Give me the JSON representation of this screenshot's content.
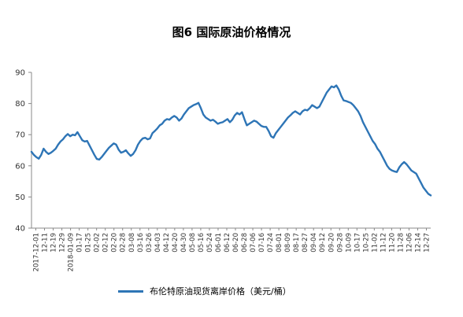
{
  "chart_data": {
    "type": "line",
    "title": "图6 国际原油价格情况",
    "xlabel": "",
    "ylabel": "",
    "ylim": [
      40,
      90
    ],
    "yticks": [
      40,
      50,
      60,
      70,
      80,
      90
    ],
    "grid": false,
    "legend_position": "bottom",
    "series_color": "#2E75B6",
    "x_tick_labels": [
      "2017-12-01",
      "12-11",
      "12-19",
      "12-29",
      "2018-01-09",
      "01-17",
      "01-25",
      "02-02",
      "02-12",
      "02-20",
      "02-28",
      "03-08",
      "03-16",
      "03-26",
      "04-03",
      "04-12",
      "04-20",
      "04-30",
      "05-08",
      "05-16",
      "05-24",
      "06-01",
      "06-12",
      "06-20",
      "06-28",
      "07-06",
      "07-16",
      "07-24",
      "08-01",
      "08-09",
      "08-17",
      "08-27",
      "09-04",
      "09-12",
      "09-20",
      "09-28",
      "10-09",
      "10-17",
      "10-25",
      "11-02",
      "11-12",
      "11-20",
      "11-28",
      "12-06",
      "12-14",
      "12-27"
    ],
    "series": [
      {
        "name": "布伦特原油现货离岸价格（美元/桶）",
        "values": [
          64.5,
          63.5,
          62.8,
          62.3,
          63.5,
          65.5,
          64.5,
          63.8,
          64.2,
          64.8,
          65.5,
          66.8,
          67.8,
          68.5,
          69.5,
          70.2,
          69.5,
          70.0,
          69.8,
          70.8,
          69.5,
          68.2,
          67.8,
          68.0,
          66.5,
          65.0,
          63.5,
          62.2,
          62.0,
          62.8,
          63.8,
          64.8,
          65.8,
          66.5,
          67.2,
          66.8,
          65.2,
          64.2,
          64.5,
          65.0,
          64.0,
          63.2,
          63.8,
          65.0,
          66.8,
          68.0,
          68.8,
          69.0,
          68.5,
          68.8,
          70.5,
          71.2,
          72.0,
          73.0,
          73.5,
          74.5,
          75.0,
          74.8,
          75.5,
          76.0,
          75.5,
          74.5,
          75.2,
          76.5,
          77.5,
          78.5,
          79.0,
          79.5,
          79.8,
          80.2,
          78.5,
          76.5,
          75.5,
          75.0,
          74.5,
          74.8,
          74.2,
          73.5,
          73.8,
          74.0,
          74.5,
          75.0,
          74.0,
          74.8,
          76.2,
          77.0,
          76.5,
          77.2,
          75.0,
          73.0,
          73.5,
          74.0,
          74.5,
          74.2,
          73.5,
          72.8,
          72.5,
          72.5,
          71.2,
          69.5,
          69.0,
          70.5,
          71.5,
          72.5,
          73.5,
          74.5,
          75.5,
          76.2,
          77.0,
          77.5,
          77.0,
          76.5,
          77.5,
          78.0,
          77.8,
          78.5,
          79.5,
          79.0,
          78.5,
          79.0,
          80.5,
          82.0,
          83.5,
          84.5,
          85.5,
          85.2,
          85.8,
          84.5,
          82.5,
          81.0,
          80.8,
          80.5,
          80.2,
          79.5,
          78.5,
          77.5,
          76.0,
          74.0,
          72.5,
          71.0,
          69.5,
          68.0,
          67.0,
          65.5,
          64.5,
          63.0,
          61.5,
          60.0,
          59.0,
          58.5,
          58.2,
          58.0,
          59.5,
          60.5,
          61.2,
          60.5,
          59.5,
          58.5,
          58.0,
          57.5,
          56.0,
          54.5,
          53.0,
          52.0,
          51.0,
          50.5
        ]
      }
    ]
  },
  "legend": {
    "label": "布伦特原油现货离岸价格（美元/桶）"
  }
}
